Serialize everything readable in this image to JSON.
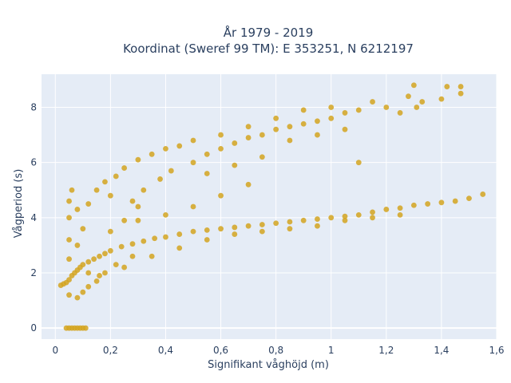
{
  "chart_data": {
    "type": "scatter",
    "title": "År 1979 - 2019",
    "subtitle": "Koordinat (Sweref 99 TM): E 353251, N 6212197",
    "xlabel": "Signifikant våghöjd (m)",
    "ylabel": "Vågperiod (s)",
    "xlim": [
      -0.05,
      1.6
    ],
    "ylim": [
      -0.4,
      9.2
    ],
    "x_ticks": [
      0,
      0.2,
      0.4,
      0.6,
      0.8,
      1,
      1.2,
      1.4,
      1.6
    ],
    "x_tick_labels": [
      "0",
      "0,2",
      "0,4",
      "0,6",
      "0,8",
      "1",
      "1,2",
      "1,4",
      "1,6"
    ],
    "y_ticks": [
      0,
      2,
      4,
      6,
      8
    ],
    "y_tick_labels": [
      "0",
      "2",
      "4",
      "6",
      "8"
    ],
    "grid": true,
    "legend": "none",
    "colors": {
      "marker": "#d4a520",
      "plot_bg": "#e5ecf6",
      "grid": "#ffffff",
      "text": "#2a3f5f"
    },
    "series": [
      {
        "points": [
          [
            0.04,
            0
          ],
          [
            0.05,
            0
          ],
          [
            0.06,
            0
          ],
          [
            0.07,
            0
          ],
          [
            0.08,
            0
          ],
          [
            0.09,
            0
          ],
          [
            0.1,
            0
          ],
          [
            0.11,
            0
          ],
          [
            0.02,
            1.55
          ],
          [
            0.03,
            1.6
          ],
          [
            0.04,
            1.65
          ],
          [
            0.05,
            1.75
          ],
          [
            0.06,
            1.9
          ],
          [
            0.07,
            2.0
          ],
          [
            0.08,
            2.1
          ],
          [
            0.09,
            2.2
          ],
          [
            0.1,
            2.3
          ],
          [
            0.12,
            2.4
          ],
          [
            0.14,
            2.5
          ],
          [
            0.16,
            2.6
          ],
          [
            0.18,
            2.7
          ],
          [
            0.2,
            2.8
          ],
          [
            0.24,
            2.95
          ],
          [
            0.28,
            3.05
          ],
          [
            0.32,
            3.15
          ],
          [
            0.36,
            3.25
          ],
          [
            0.4,
            3.3
          ],
          [
            0.45,
            3.4
          ],
          [
            0.5,
            3.5
          ],
          [
            0.55,
            3.55
          ],
          [
            0.6,
            3.6
          ],
          [
            0.65,
            3.65
          ],
          [
            0.7,
            3.7
          ],
          [
            0.75,
            3.75
          ],
          [
            0.8,
            3.8
          ],
          [
            0.85,
            3.85
          ],
          [
            0.9,
            3.9
          ],
          [
            0.95,
            3.95
          ],
          [
            1.0,
            4.0
          ],
          [
            1.05,
            4.05
          ],
          [
            1.1,
            4.1
          ],
          [
            1.15,
            4.2
          ],
          [
            1.2,
            4.3
          ],
          [
            1.25,
            4.35
          ],
          [
            1.3,
            4.45
          ],
          [
            1.35,
            4.5
          ],
          [
            1.4,
            4.55
          ],
          [
            1.45,
            4.6
          ],
          [
            1.5,
            4.7
          ],
          [
            1.55,
            4.85
          ],
          [
            0.05,
            1.2
          ],
          [
            0.05,
            2.5
          ],
          [
            0.05,
            3.2
          ],
          [
            0.05,
            4.0
          ],
          [
            0.05,
            4.6
          ],
          [
            0.06,
            5.0
          ],
          [
            0.08,
            1.1
          ],
          [
            0.08,
            3.0
          ],
          [
            0.08,
            4.3
          ],
          [
            0.1,
            1.3
          ],
          [
            0.1,
            3.6
          ],
          [
            0.12,
            1.5
          ],
          [
            0.12,
            4.5
          ],
          [
            0.15,
            1.7
          ],
          [
            0.15,
            5.0
          ],
          [
            0.18,
            2.0
          ],
          [
            0.18,
            5.3
          ],
          [
            0.2,
            4.8
          ],
          [
            0.22,
            5.5
          ],
          [
            0.25,
            3.9
          ],
          [
            0.25,
            5.8
          ],
          [
            0.28,
            4.6
          ],
          [
            0.3,
            6.1
          ],
          [
            0.32,
            5.0
          ],
          [
            0.35,
            6.3
          ],
          [
            0.38,
            5.4
          ],
          [
            0.4,
            6.5
          ],
          [
            0.42,
            5.7
          ],
          [
            0.45,
            6.6
          ],
          [
            0.5,
            6.0
          ],
          [
            0.5,
            6.8
          ],
          [
            0.55,
            6.3
          ],
          [
            0.6,
            6.5
          ],
          [
            0.6,
            7.0
          ],
          [
            0.65,
            6.7
          ],
          [
            0.7,
            6.9
          ],
          [
            0.7,
            7.3
          ],
          [
            0.75,
            7.0
          ],
          [
            0.8,
            7.2
          ],
          [
            0.8,
            7.6
          ],
          [
            0.85,
            7.3
          ],
          [
            0.9,
            7.4
          ],
          [
            0.9,
            7.9
          ],
          [
            0.95,
            7.5
          ],
          [
            1.0,
            7.6
          ],
          [
            1.0,
            8.0
          ],
          [
            1.05,
            7.8
          ],
          [
            1.1,
            7.9
          ],
          [
            1.15,
            8.2
          ],
          [
            1.2,
            8.0
          ],
          [
            1.25,
            7.8
          ],
          [
            1.28,
            8.4
          ],
          [
            1.3,
            8.8
          ],
          [
            1.31,
            8.0
          ],
          [
            1.33,
            8.2
          ],
          [
            1.4,
            8.3
          ],
          [
            1.42,
            8.75
          ],
          [
            1.47,
            8.5
          ],
          [
            1.47,
            8.75
          ],
          [
            0.55,
            5.6
          ],
          [
            0.65,
            5.9
          ],
          [
            0.75,
            6.2
          ],
          [
            0.85,
            6.8
          ],
          [
            0.95,
            7.0
          ],
          [
            1.05,
            7.2
          ],
          [
            1.1,
            6.0
          ],
          [
            0.25,
            2.2
          ],
          [
            0.35,
            2.6
          ],
          [
            0.45,
            2.9
          ],
          [
            0.55,
            3.2
          ],
          [
            0.65,
            3.4
          ],
          [
            0.75,
            3.5
          ],
          [
            0.85,
            3.6
          ],
          [
            0.95,
            3.7
          ],
          [
            1.05,
            3.9
          ],
          [
            1.15,
            4.0
          ],
          [
            1.25,
            4.1
          ],
          [
            0.3,
            3.9
          ],
          [
            0.4,
            4.1
          ],
          [
            0.5,
            4.4
          ],
          [
            0.6,
            4.8
          ],
          [
            0.7,
            5.2
          ],
          [
            0.16,
            1.9
          ],
          [
            0.22,
            2.3
          ],
          [
            0.28,
            2.6
          ],
          [
            0.12,
            2.0
          ],
          [
            0.2,
            3.5
          ],
          [
            0.3,
            4.4
          ]
        ]
      }
    ]
  }
}
